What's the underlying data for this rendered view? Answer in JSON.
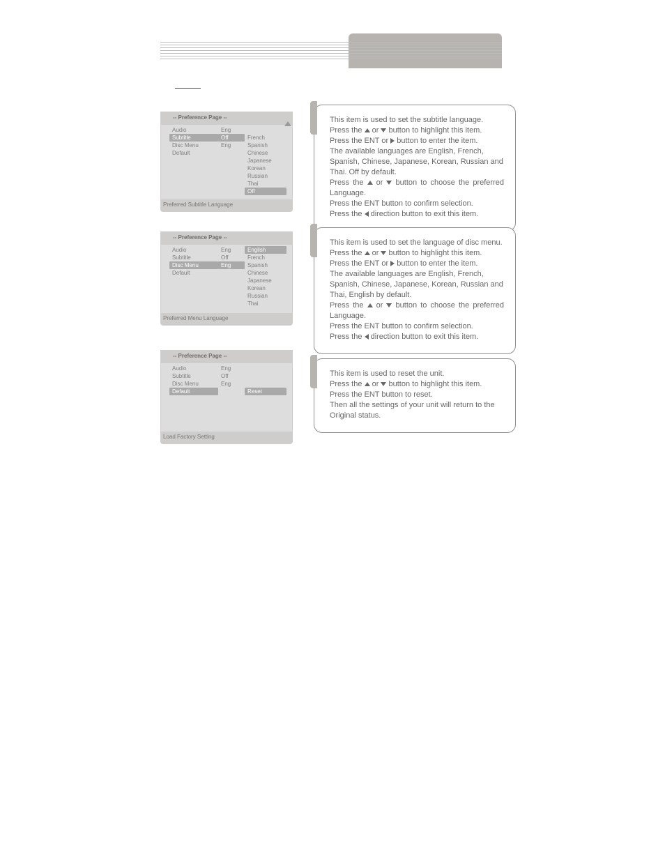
{
  "colors": {
    "panel_bg": "#cfcdcb",
    "panel_body": "#ddd",
    "highlight": "#a9a9a9",
    "text": "#7f7f7f",
    "box_border": "#8f8f8f",
    "header_tab": "#b7b4b0"
  },
  "pref_title": "-- Preference Page --",
  "panel1": {
    "rows_c1": [
      "Audio",
      "Subtitle",
      "Disc Menu",
      "Default"
    ],
    "rows_c2": [
      "Eng",
      "Off",
      "Eng",
      ""
    ],
    "rows_c3": [
      "",
      "French",
      "Spanish",
      "Chinese",
      "Japanese",
      "Korean",
      "Russian",
      "Thai",
      "Off"
    ],
    "c1_highlight_index": 1,
    "c2_highlight_index": 1,
    "c3_highlight_index": 8,
    "footer": "Preferred Subtitle Language"
  },
  "panel2": {
    "rows_c1": [
      "Audio",
      "Subtitle",
      "Disc Menu",
      "Default"
    ],
    "rows_c2": [
      "Eng",
      "Off",
      "Eng",
      ""
    ],
    "rows_c3": [
      "English",
      "French",
      "Spanish",
      "Chinese",
      "Japanese",
      "Korean",
      "Russian",
      "Thai"
    ],
    "c1_highlight_index": 2,
    "c2_highlight_index": 2,
    "c3_highlight_index": 0,
    "footer": "Preferred Menu Language"
  },
  "panel3": {
    "rows_c1": [
      "Audio",
      "Subtitle",
      "Disc Menu",
      "Default"
    ],
    "rows_c2": [
      "Eng",
      "Off",
      "Eng",
      ""
    ],
    "rows_c3": [
      "",
      "",
      "",
      "Reset"
    ],
    "c1_highlight_index": 3,
    "c3_highlight_index": 3,
    "footer": "Load Factory Setting"
  },
  "box1": {
    "l1": "This item is used to set the subtitle language.",
    "l2a": "Press the ",
    "l2b": " or ",
    "l2c": " button to highlight this item.",
    "l3a": "Press the ENT or ",
    "l3b": " button to enter the item.",
    "l4": "The available languages are English, French, Spanish, Chinese, Japanese, Korean, Russian and Thai. Off by default.",
    "l5a": "Press the ",
    "l5b": " or ",
    "l5c": " button to choose the preferred Language.",
    "l6": "Press the ENT button to confirm selection.",
    "l7a": "Press the ",
    "l7b": " direction button to exit this item."
  },
  "box2": {
    "l1": "This item is used to set the language of disc menu.",
    "l2a": "Press the ",
    "l2b": " or ",
    "l2c": " button to highlight this item.",
    "l3a": "Press the ENT or ",
    "l3b": " button to enter the item.",
    "l4": "The available languages are English, French, Spanish, Chinese, Japanese, Korean, Russian and Thai, English by default.",
    "l5a": "Press the ",
    "l5b": " or ",
    "l5c": " button to choose the preferred Language.",
    "l6": "Press the ENT button to confirm selection.",
    "l7a": "Press the ",
    "l7b": " direction button to exit this item."
  },
  "box3": {
    "l1": "This item is used to reset the unit.",
    "l2a": "Press the ",
    "l2b": " or ",
    "l2c": " button to highlight this item.",
    "l3": "Press the ENT button to reset.",
    "l4": "Then all the settings of your unit will return to the Original status."
  }
}
